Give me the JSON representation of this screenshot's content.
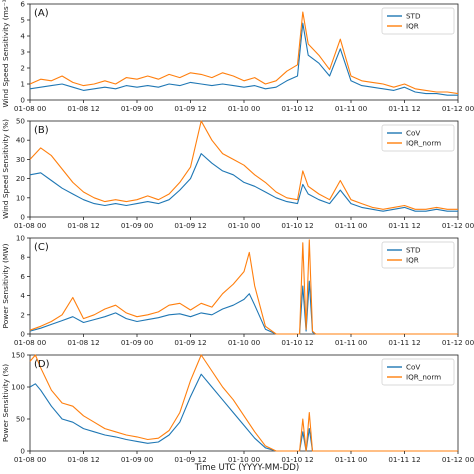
{
  "figure": {
    "xlabel": "Time UTC (YYYY-MM-DD)"
  },
  "chart_data": [
    {
      "type": "line",
      "panel_label": "(A)",
      "ylabel": "Wind Speed Sensitivity (ms⁻¹)",
      "xlim": [
        0,
        4.0
      ],
      "ylim": [
        0,
        6
      ],
      "yticks": [
        0,
        1,
        2,
        3,
        4,
        5,
        6
      ],
      "xticks": [
        0,
        0.5,
        1.0,
        1.5,
        2.0,
        2.5,
        3.0,
        3.5,
        4.0
      ],
      "xticklabels": [
        "01-08 00",
        "01-08 12",
        "01-09 00",
        "01-09 12",
        "01-10 00",
        "01-10 12",
        "01-11 00",
        "01-11 12",
        "01-12 00"
      ],
      "legend": "top-right",
      "series": [
        {
          "name": "STD",
          "color": "#1f77b4",
          "x": [
            0.0,
            0.1,
            0.2,
            0.3,
            0.4,
            0.5,
            0.6,
            0.7,
            0.8,
            0.9,
            1.0,
            1.1,
            1.2,
            1.3,
            1.4,
            1.5,
            1.6,
            1.7,
            1.8,
            1.9,
            2.0,
            2.1,
            2.2,
            2.3,
            2.4,
            2.5,
            2.55,
            2.6,
            2.7,
            2.8,
            2.9,
            3.0,
            3.1,
            3.2,
            3.3,
            3.4,
            3.5,
            3.6,
            3.7,
            3.8,
            3.9,
            4.0
          ],
          "values": [
            0.7,
            0.8,
            0.9,
            1.0,
            0.8,
            0.6,
            0.7,
            0.8,
            0.7,
            0.9,
            0.8,
            0.9,
            0.8,
            1.0,
            0.9,
            1.1,
            1.0,
            0.9,
            1.0,
            0.9,
            0.8,
            0.9,
            0.7,
            0.8,
            1.2,
            1.5,
            4.8,
            2.8,
            2.3,
            1.5,
            3.2,
            1.2,
            0.9,
            0.8,
            0.7,
            0.6,
            0.8,
            0.5,
            0.4,
            0.4,
            0.3,
            0.3
          ]
        },
        {
          "name": "IQR",
          "color": "#ff7f0e",
          "x": [
            0.0,
            0.1,
            0.2,
            0.3,
            0.4,
            0.5,
            0.6,
            0.7,
            0.8,
            0.9,
            1.0,
            1.1,
            1.2,
            1.3,
            1.4,
            1.5,
            1.6,
            1.7,
            1.8,
            1.9,
            2.0,
            2.1,
            2.2,
            2.3,
            2.4,
            2.5,
            2.55,
            2.6,
            2.7,
            2.8,
            2.9,
            3.0,
            3.1,
            3.2,
            3.3,
            3.4,
            3.5,
            3.6,
            3.7,
            3.8,
            3.9,
            4.0
          ],
          "values": [
            1.0,
            1.3,
            1.2,
            1.5,
            1.1,
            0.9,
            1.0,
            1.2,
            1.0,
            1.4,
            1.3,
            1.5,
            1.3,
            1.6,
            1.4,
            1.7,
            1.6,
            1.4,
            1.7,
            1.5,
            1.2,
            1.4,
            1.0,
            1.2,
            1.8,
            2.2,
            5.5,
            3.5,
            2.8,
            1.9,
            3.8,
            1.5,
            1.2,
            1.1,
            1.0,
            0.8,
            1.0,
            0.7,
            0.6,
            0.5,
            0.5,
            0.4
          ]
        }
      ]
    },
    {
      "type": "line",
      "panel_label": "(B)",
      "ylabel": "Wind Speed Sensitivity (%)",
      "xlim": [
        0,
        4.0
      ],
      "ylim": [
        0,
        50
      ],
      "yticks": [
        0,
        10,
        20,
        30,
        40,
        50
      ],
      "xticks": [
        0,
        0.5,
        1.0,
        1.5,
        2.0,
        2.5,
        3.0,
        3.5,
        4.0
      ],
      "xticklabels": [
        "01-08 00",
        "01-08 12",
        "01-09 00",
        "01-09 12",
        "01-10 00",
        "01-10 12",
        "01-11 00",
        "01-11 12",
        "01-12 00"
      ],
      "legend": "top-right",
      "series": [
        {
          "name": "CoV",
          "color": "#1f77b4",
          "x": [
            0.0,
            0.1,
            0.2,
            0.3,
            0.4,
            0.5,
            0.6,
            0.7,
            0.8,
            0.9,
            1.0,
            1.1,
            1.2,
            1.3,
            1.4,
            1.5,
            1.6,
            1.7,
            1.8,
            1.9,
            2.0,
            2.1,
            2.2,
            2.3,
            2.4,
            2.5,
            2.55,
            2.6,
            2.7,
            2.8,
            2.9,
            3.0,
            3.1,
            3.2,
            3.3,
            3.4,
            3.5,
            3.6,
            3.7,
            3.8,
            3.9,
            4.0
          ],
          "values": [
            22,
            23,
            19,
            15,
            12,
            9,
            7,
            6,
            7,
            6,
            7,
            8,
            7,
            9,
            14,
            20,
            33,
            28,
            24,
            22,
            18,
            16,
            13,
            10,
            8,
            7,
            17,
            12,
            9,
            7,
            14,
            7,
            5,
            4,
            3,
            4,
            5,
            3,
            3,
            4,
            3,
            3
          ]
        },
        {
          "name": "IQR_norm",
          "color": "#ff7f0e",
          "x": [
            0.0,
            0.1,
            0.2,
            0.3,
            0.4,
            0.5,
            0.6,
            0.7,
            0.8,
            0.9,
            1.0,
            1.1,
            1.2,
            1.3,
            1.4,
            1.5,
            1.6,
            1.7,
            1.8,
            1.9,
            2.0,
            2.1,
            2.2,
            2.3,
            2.4,
            2.5,
            2.55,
            2.6,
            2.7,
            2.8,
            2.9,
            3.0,
            3.1,
            3.2,
            3.3,
            3.4,
            3.5,
            3.6,
            3.7,
            3.8,
            3.9,
            4.0
          ],
          "values": [
            30,
            36,
            32,
            25,
            18,
            13,
            10,
            8,
            9,
            8,
            9,
            11,
            9,
            12,
            18,
            26,
            50,
            40,
            33,
            30,
            27,
            22,
            18,
            13,
            10,
            9,
            24,
            16,
            12,
            9,
            19,
            9,
            7,
            5,
            4,
            5,
            6,
            4,
            4,
            5,
            4,
            4
          ]
        }
      ]
    },
    {
      "type": "line",
      "panel_label": "(C)",
      "ylabel": "Power Sensitivity (MW)",
      "xlim": [
        0,
        4.0
      ],
      "ylim": [
        0,
        10
      ],
      "yticks": [
        0,
        2,
        4,
        6,
        8,
        10
      ],
      "xticks": [
        0,
        0.5,
        1.0,
        1.5,
        2.0,
        2.5,
        3.0,
        3.5,
        4.0
      ],
      "xticklabels": [
        "01-08 00",
        "01-08 12",
        "01-09 00",
        "01-09 12",
        "01-10 00",
        "01-10 12",
        "01-11 00",
        "01-11 12",
        "01-12 00"
      ],
      "legend": "top-right",
      "series": [
        {
          "name": "STD",
          "color": "#1f77b4",
          "x": [
            0.0,
            0.1,
            0.2,
            0.3,
            0.4,
            0.5,
            0.6,
            0.7,
            0.8,
            0.9,
            1.0,
            1.1,
            1.2,
            1.3,
            1.4,
            1.5,
            1.6,
            1.7,
            1.8,
            1.9,
            2.0,
            2.05,
            2.1,
            2.2,
            2.3,
            2.4,
            2.5,
            2.52,
            2.55,
            2.58,
            2.61,
            2.64,
            2.67,
            2.7,
            2.8,
            2.9,
            3.0,
            3.2,
            3.4,
            3.6,
            3.8,
            4.0
          ],
          "values": [
            0.3,
            0.6,
            1.0,
            1.4,
            1.8,
            1.2,
            1.5,
            1.8,
            2.2,
            1.6,
            1.3,
            1.5,
            1.7,
            2.0,
            2.1,
            1.8,
            2.2,
            2.0,
            2.6,
            3.0,
            3.6,
            4.2,
            3.0,
            0.5,
            0,
            0,
            0,
            0,
            5.0,
            0.3,
            5.5,
            0.2,
            0,
            0,
            0,
            0,
            0,
            0,
            0,
            0,
            0,
            0
          ]
        },
        {
          "name": "IQR",
          "color": "#ff7f0e",
          "x": [
            0.0,
            0.1,
            0.2,
            0.3,
            0.4,
            0.5,
            0.6,
            0.7,
            0.8,
            0.9,
            1.0,
            1.1,
            1.2,
            1.3,
            1.4,
            1.5,
            1.6,
            1.7,
            1.8,
            1.9,
            2.0,
            2.05,
            2.1,
            2.2,
            2.3,
            2.4,
            2.5,
            2.52,
            2.55,
            2.58,
            2.61,
            2.64,
            2.67,
            2.7,
            2.8,
            2.9,
            3.0,
            3.2,
            3.4,
            3.6,
            3.8,
            4.0
          ],
          "values": [
            0.4,
            0.8,
            1.3,
            2.0,
            3.8,
            1.6,
            2.0,
            2.6,
            3.0,
            2.2,
            1.8,
            2.0,
            2.3,
            3.0,
            3.2,
            2.5,
            3.2,
            2.8,
            4.2,
            5.2,
            6.5,
            8.5,
            5.0,
            0.8,
            0,
            0,
            0,
            0,
            9.5,
            0.5,
            9.8,
            0.3,
            0,
            0,
            0,
            0,
            0,
            0,
            0,
            0,
            0,
            0
          ]
        }
      ]
    },
    {
      "type": "line",
      "panel_label": "(D)",
      "ylabel": "Power Sensitivity (%)",
      "xlim": [
        0,
        4.0
      ],
      "ylim": [
        0,
        150
      ],
      "yticks": [
        0,
        50,
        100,
        150
      ],
      "xticks": [
        0,
        0.5,
        1.0,
        1.5,
        2.0,
        2.5,
        3.0,
        3.5,
        4.0
      ],
      "xticklabels": [
        "01-08 00",
        "01-08 12",
        "01-09 00",
        "01-09 12",
        "01-10 00",
        "01-10 12",
        "01-11 00",
        "01-11 12",
        "01-12 00"
      ],
      "legend": "top-right",
      "series": [
        {
          "name": "CoV",
          "color": "#1f77b4",
          "x": [
            0.0,
            0.05,
            0.1,
            0.2,
            0.3,
            0.4,
            0.5,
            0.6,
            0.7,
            0.8,
            0.9,
            1.0,
            1.1,
            1.2,
            1.3,
            1.4,
            1.5,
            1.6,
            1.7,
            1.8,
            1.9,
            2.0,
            2.1,
            2.2,
            2.3,
            2.4,
            2.5,
            2.52,
            2.55,
            2.58,
            2.61,
            2.64,
            2.67,
            2.7,
            2.8,
            2.9,
            3.0,
            3.2,
            3.4,
            3.6,
            3.8,
            4.0
          ],
          "values": [
            100,
            105,
            95,
            70,
            50,
            45,
            35,
            30,
            25,
            22,
            18,
            15,
            12,
            14,
            25,
            45,
            85,
            120,
            100,
            80,
            60,
            40,
            20,
            5,
            0,
            0,
            0,
            0,
            30,
            0,
            35,
            0,
            0,
            0,
            0,
            0,
            0,
            0,
            0,
            0,
            0,
            0
          ]
        },
        {
          "name": "IQR_norm",
          "color": "#ff7f0e",
          "x": [
            0.0,
            0.05,
            0.1,
            0.2,
            0.3,
            0.4,
            0.5,
            0.6,
            0.7,
            0.8,
            0.9,
            1.0,
            1.1,
            1.2,
            1.3,
            1.4,
            1.5,
            1.6,
            1.7,
            1.8,
            1.9,
            2.0,
            2.1,
            2.2,
            2.3,
            2.4,
            2.5,
            2.52,
            2.55,
            2.58,
            2.61,
            2.64,
            2.67,
            2.7,
            2.8,
            2.9,
            3.0,
            3.2,
            3.4,
            3.6,
            3.8,
            4.0
          ],
          "values": [
            140,
            160,
            130,
            95,
            75,
            70,
            55,
            45,
            35,
            30,
            25,
            22,
            18,
            20,
            32,
            60,
            110,
            150,
            125,
            100,
            80,
            55,
            30,
            8,
            0,
            0,
            0,
            0,
            50,
            0,
            60,
            0,
            0,
            0,
            0,
            0,
            0,
            0,
            0,
            0,
            0,
            0
          ]
        }
      ]
    }
  ]
}
